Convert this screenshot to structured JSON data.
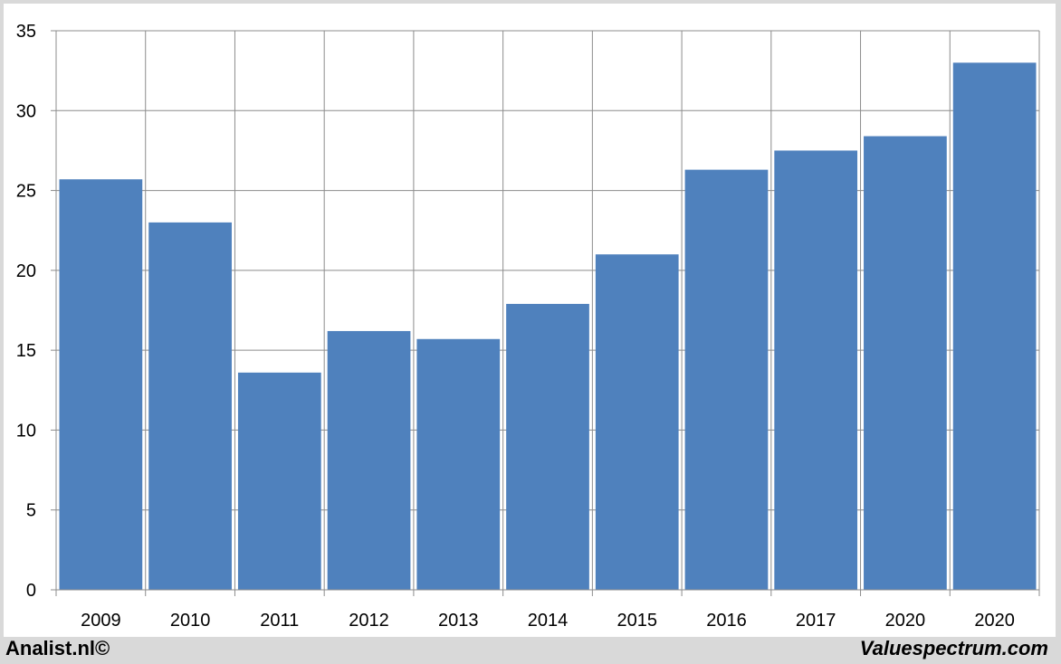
{
  "chart_data": {
    "type": "bar",
    "categories": [
      "2009",
      "2010",
      "2011",
      "2012",
      "2013",
      "2014",
      "2015",
      "2016",
      "2017",
      "2020",
      "2020"
    ],
    "values": [
      25.7,
      23.0,
      13.6,
      16.2,
      15.7,
      17.9,
      21.0,
      26.3,
      27.5,
      28.4,
      33.0
    ],
    "title": "",
    "xlabel": "",
    "ylabel": "",
    "ylim": [
      0,
      35
    ],
    "yticks": [
      0,
      5,
      10,
      15,
      20,
      25,
      30,
      35
    ],
    "grid": true,
    "bar_color": "#4f81bd",
    "legend": "none"
  },
  "footer": {
    "left": "Analist.nl©",
    "right": "Valuespectrum.com"
  }
}
